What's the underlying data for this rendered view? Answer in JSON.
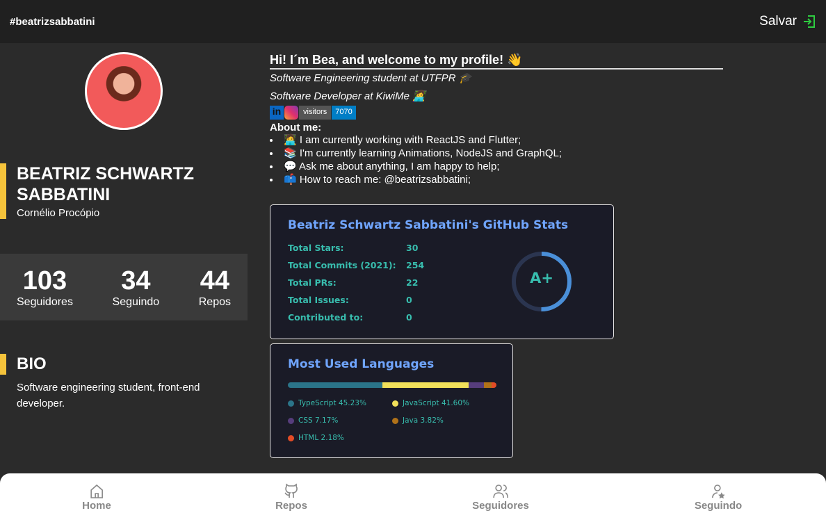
{
  "header": {
    "username": "#beatrizsabbatini",
    "save_label": "Salvar",
    "accent": "#2ecc40"
  },
  "profile": {
    "name": "BEATRIZ SCHWARTZ SABBATINI",
    "city": "Cornélio Procópio",
    "stats": [
      {
        "value": "103",
        "label": "Seguidores"
      },
      {
        "value": "34",
        "label": "Seguindo"
      },
      {
        "value": "44",
        "label": "Repos"
      }
    ],
    "bio_title": "BIO",
    "bio": "Software engineering student, front-end developer."
  },
  "readme": {
    "greeting": "Hi! I´m Bea, and welcome to my profile! 👋",
    "line1": "Software Engineering student at UTFPR 🎓",
    "line2": "Software Developer at KiwiMe 👩‍💻",
    "badges": {
      "linkedin": "in",
      "visitors_label": "visitors",
      "visitors_count": "7070"
    },
    "about_title": "About me:",
    "items": [
      "🧑‍💻 I am currently working with ReactJS and Flutter;",
      "📚 I'm currently learning Animations, NodeJS and GraphQL;",
      "💬 Ask me about anything, I am happy to help;",
      "📫 How to reach me: @beatrizsabbatini;"
    ]
  },
  "github_stats": {
    "title": "Beatriz Schwartz Sabbatini's GitHub Stats",
    "rows": [
      {
        "label": "Total Stars:",
        "value": "30"
      },
      {
        "label": "Total Commits (2021):",
        "value": "254"
      },
      {
        "label": "Total PRs:",
        "value": "22"
      },
      {
        "label": "Total Issues:",
        "value": "0"
      },
      {
        "label": "Contributed to:",
        "value": "0"
      }
    ],
    "grade": "A+"
  },
  "chart_data": {
    "type": "bar",
    "title": "Most Used Languages",
    "categories": [
      "TypeScript",
      "JavaScript",
      "CSS",
      "Java",
      "HTML"
    ],
    "values": [
      45.23,
      41.6,
      7.17,
      3.82,
      2.18
    ],
    "labels": [
      "TypeScript 45.23%",
      "JavaScript 41.60%",
      "CSS 7.17%",
      "Java 3.82%",
      "HTML 2.18%"
    ],
    "colors": [
      "#2b7489",
      "#f1e05a",
      "#563d7c",
      "#b07219",
      "#e34c26"
    ]
  },
  "nav": [
    {
      "label": "Home",
      "icon": "home-icon"
    },
    {
      "label": "Repos",
      "icon": "github-icon"
    },
    {
      "label": "Seguidores",
      "icon": "users-icon"
    },
    {
      "label": "Seguindo",
      "icon": "user-star-icon"
    }
  ]
}
